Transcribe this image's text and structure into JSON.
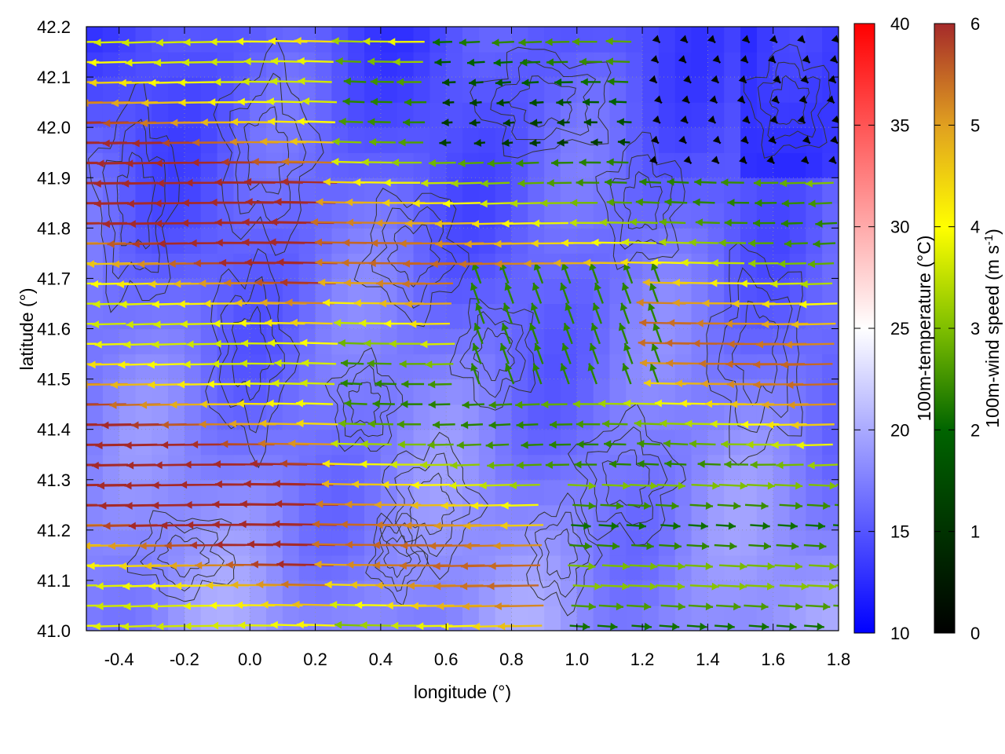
{
  "chart_data": {
    "type": "heatmap",
    "title": "",
    "xlabel": "longitude (°)",
    "ylabel": "latitude (°)",
    "xlim": [
      -0.5,
      1.8
    ],
    "ylim": [
      41.0,
      42.2
    ],
    "xticks": [
      "-0.4",
      "-0.2",
      "0.0",
      "0.2",
      "0.4",
      "0.6",
      "0.8",
      "1.0",
      "1.2",
      "1.4",
      "1.6",
      "1.8"
    ],
    "yticks": [
      "41.0",
      "41.1",
      "41.2",
      "41.3",
      "41.4",
      "41.5",
      "41.6",
      "41.7",
      "41.8",
      "41.9",
      "42.0",
      "42.1",
      "42.2"
    ],
    "grid": true,
    "layers": [
      {
        "name": "temperature field",
        "kind": "heatmap",
        "approx_range_celsius": [
          14,
          21
        ]
      },
      {
        "name": "terrain contours",
        "kind": "contour",
        "color": "#333333"
      },
      {
        "name": "wind vectors",
        "kind": "vector",
        "approx_pattern": "strong westward flow (4-6 m/s) over western and central-north area; eastward flow (2-4 m/s) in the south-east; weak winds (<1 m/s) in the north-east"
      }
    ],
    "temperature_colorbar": {
      "label": "100m-temperature (°C)",
      "range": [
        10,
        40
      ],
      "ticks": [
        "10",
        "15",
        "20",
        "25",
        "30",
        "35",
        "40"
      ],
      "colors": [
        "#0000ff",
        "#ffffff",
        "#ff0000"
      ]
    },
    "wind_colorbar": {
      "label": "100m-wind speed (m s",
      "label_sup": "-1",
      "label_tail": ")",
      "range": [
        0,
        6
      ],
      "ticks": [
        "0",
        "1",
        "2",
        "3",
        "4",
        "5",
        "6"
      ],
      "colors": [
        "#000000",
        "#006400",
        "#7fbf00",
        "#ffff00",
        "#e0a020",
        "#a52a2a"
      ]
    }
  }
}
